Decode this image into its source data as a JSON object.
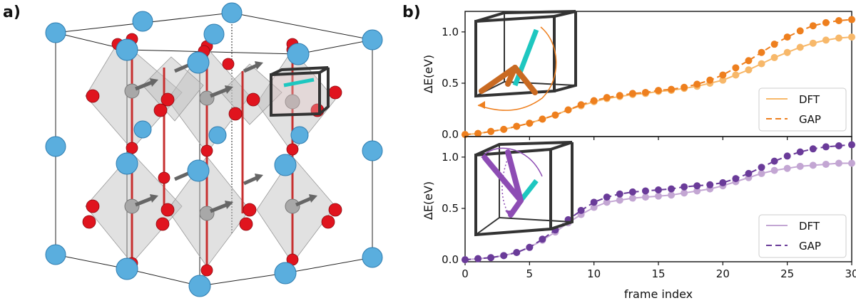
{
  "figure": {
    "panel_a_label": "a)",
    "panel_b_label": "b)"
  },
  "colors": {
    "oxygen": "#e0141e",
    "metal_a": "#5aaede",
    "metal_b": "#a8a8a8",
    "octahedron": "#c4c4c4",
    "arrow": "#666666",
    "bond": "#c73030",
    "inset_cube": "#333333",
    "top_dft": "#f7b86a",
    "top_gap": "#ee7f1e",
    "bottom_dft": "#c3a6d3",
    "bottom_gap": "#6a3b99",
    "inset_teal": "#1ec7c0",
    "inset_top_arm": "#c96a22",
    "inset_bottom_arm": "#8d4cb4"
  },
  "chart_data": [
    {
      "type": "line",
      "panel": "b) top",
      "xlabel": "",
      "ylabel": "ΔE(eV)",
      "xlim": [
        0,
        30
      ],
      "ylim": [
        -0.02,
        1.2
      ],
      "x_ticks": [
        "0",
        "5",
        "10",
        "15",
        "20",
        "25",
        "30"
      ],
      "y_ticks": [
        "0.0",
        "0.5",
        "1.0"
      ],
      "x": [
        0,
        1,
        2,
        3,
        4,
        5,
        6,
        7,
        8,
        9,
        10,
        11,
        12,
        13,
        14,
        15,
        16,
        17,
        18,
        19,
        20,
        21,
        22,
        23,
        24,
        25,
        26,
        27,
        28,
        29,
        30
      ],
      "series": [
        {
          "name": "DFT",
          "style": "solid",
          "values": [
            0.0,
            0.01,
            0.03,
            0.05,
            0.08,
            0.11,
            0.15,
            0.19,
            0.24,
            0.28,
            0.32,
            0.35,
            0.37,
            0.39,
            0.4,
            0.42,
            0.43,
            0.45,
            0.47,
            0.5,
            0.53,
            0.58,
            0.63,
            0.69,
            0.75,
            0.8,
            0.85,
            0.89,
            0.92,
            0.94,
            0.95
          ]
        },
        {
          "name": "GAP",
          "style": "dashed",
          "values": [
            0.0,
            0.01,
            0.03,
            0.05,
            0.08,
            0.11,
            0.15,
            0.19,
            0.24,
            0.29,
            0.33,
            0.36,
            0.38,
            0.4,
            0.41,
            0.43,
            0.44,
            0.46,
            0.49,
            0.53,
            0.58,
            0.65,
            0.72,
            0.8,
            0.88,
            0.95,
            1.01,
            1.06,
            1.09,
            1.11,
            1.12
          ]
        }
      ],
      "legend": "lower right"
    },
    {
      "type": "line",
      "panel": "b) bottom",
      "xlabel": "frame index",
      "ylabel": "ΔE(eV)",
      "xlim": [
        0,
        30
      ],
      "ylim": [
        -0.02,
        1.2
      ],
      "x_ticks": [
        "0",
        "5",
        "10",
        "15",
        "20",
        "25",
        "30"
      ],
      "y_ticks": [
        "0.0",
        "0.5",
        "1.0"
      ],
      "x": [
        0,
        1,
        2,
        3,
        4,
        5,
        6,
        7,
        8,
        9,
        10,
        11,
        12,
        13,
        14,
        15,
        16,
        17,
        18,
        19,
        20,
        21,
        22,
        23,
        24,
        25,
        26,
        27,
        28,
        29,
        30
      ],
      "series": [
        {
          "name": "DFT",
          "style": "solid",
          "values": [
            0.0,
            0.01,
            0.02,
            0.04,
            0.07,
            0.12,
            0.19,
            0.27,
            0.36,
            0.44,
            0.51,
            0.56,
            0.58,
            0.6,
            0.61,
            0.62,
            0.63,
            0.65,
            0.67,
            0.69,
            0.72,
            0.76,
            0.8,
            0.84,
            0.87,
            0.89,
            0.91,
            0.92,
            0.93,
            0.94,
            0.94
          ]
        },
        {
          "name": "GAP",
          "style": "dashed",
          "values": [
            0.0,
            0.01,
            0.02,
            0.04,
            0.07,
            0.12,
            0.2,
            0.29,
            0.39,
            0.48,
            0.56,
            0.61,
            0.64,
            0.66,
            0.67,
            0.68,
            0.69,
            0.71,
            0.72,
            0.73,
            0.75,
            0.79,
            0.84,
            0.9,
            0.96,
            1.01,
            1.05,
            1.08,
            1.1,
            1.11,
            1.12
          ]
        }
      ],
      "legend": "lower right"
    }
  ]
}
